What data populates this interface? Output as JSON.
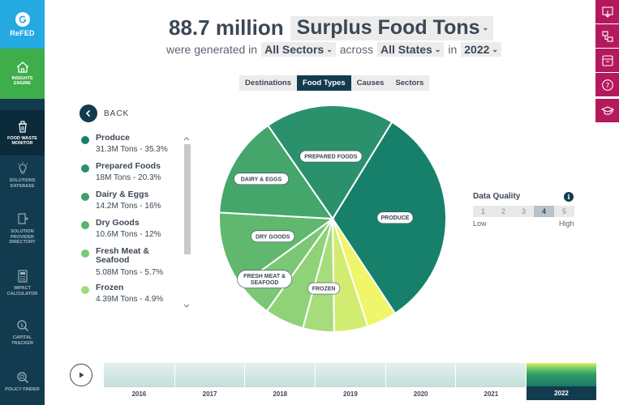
{
  "brand": {
    "logo_text": "ReFED",
    "accent": "#24a9e1",
    "nav_bg": "#133b4f",
    "tool_color": "#b5195d"
  },
  "nav": {
    "items": [
      {
        "label_lines": [
          "INSIGHTS",
          "ENGINE"
        ],
        "icon": "home-icon"
      },
      {
        "label_lines": [
          "FOOD WASTE",
          "MONITOR"
        ],
        "icon": "food-waste-icon"
      },
      {
        "label_lines": [
          "SOLUTIONS",
          "DATABASE"
        ],
        "icon": "lightbulb-icon"
      },
      {
        "label_lines": [
          "SOLUTION",
          "PROVIDER",
          "DIRECTORY"
        ],
        "icon": "directory-icon"
      },
      {
        "label_lines": [
          "IMPACT",
          "CALCULATOR"
        ],
        "icon": "calculator-icon"
      },
      {
        "label_lines": [
          "CAPITAL",
          "TRACKER"
        ],
        "icon": "capital-search-icon"
      },
      {
        "label_lines": [
          "POLICY FINDER"
        ],
        "icon": "policy-search-icon"
      }
    ]
  },
  "header": {
    "amount": "88.7 million",
    "metric": "Surplus Food Tons",
    "pre_sector": "were generated in",
    "sector": "All Sectors",
    "mid": "across",
    "state": "All States",
    "pre_year": "in",
    "year": "2022"
  },
  "tabs": [
    {
      "label": "Destinations",
      "active": false
    },
    {
      "label": "Food Types",
      "active": true
    },
    {
      "label": "Causes",
      "active": false
    },
    {
      "label": "Sectors",
      "active": false
    }
  ],
  "back_label": "BACK",
  "legend": [
    {
      "name": "Produce",
      "value": "31.3M Tons - 35.3%",
      "color": "#17806a"
    },
    {
      "name": "Prepared Foods",
      "value": "18M Tons - 20.3%",
      "color": "#2b8f6c"
    },
    {
      "name": "Dairy & Eggs",
      "value": "14.2M Tons - 16%",
      "color": "#3da06a"
    },
    {
      "name": "Dry Goods",
      "value": "10.6M Tons - 12%",
      "color": "#58b36d"
    },
    {
      "name": "Fresh Meat & Seafood",
      "value": "5.08M Tons - 5.7%",
      "color": "#7dc877"
    },
    {
      "name": "Frozen",
      "value": "4.39M Tons - 4.9%",
      "color": "#a2da7c"
    }
  ],
  "chart_data": {
    "type": "pie",
    "slices": [
      {
        "label": "PRODUCE",
        "value": 35.3,
        "color": "#17806a"
      },
      {
        "label": "",
        "value": 4.7,
        "color": "#f0f56a"
      },
      {
        "label": "",
        "value": 5.3,
        "color": "#d2ec72"
      },
      {
        "label": "FROZEN",
        "value": 4.9,
        "color": "#a7dc7d"
      },
      {
        "label": "",
        "value": 6.2,
        "color": "#8fd277"
      },
      {
        "label": "FRESH MEAT & SEAFOOD",
        "value": 5.7,
        "color": "#7bc775"
      },
      {
        "label": "DRY GOODS",
        "value": 12.0,
        "color": "#60b86f"
      },
      {
        "label": "DAIRY & EGGS",
        "value": 16.0,
        "color": "#44a66b"
      },
      {
        "label": "PREPARED FOODS",
        "value": 20.3,
        "color": "#2b916c"
      }
    ]
  },
  "data_quality": {
    "title": "Data Quality",
    "levels": [
      "1",
      "2",
      "3",
      "4",
      "5"
    ],
    "selected": "4",
    "low": "Low",
    "high": "High"
  },
  "timeline": {
    "years": [
      "2016",
      "2017",
      "2018",
      "2019",
      "2020",
      "2021",
      "2022"
    ],
    "selected": "2022"
  }
}
